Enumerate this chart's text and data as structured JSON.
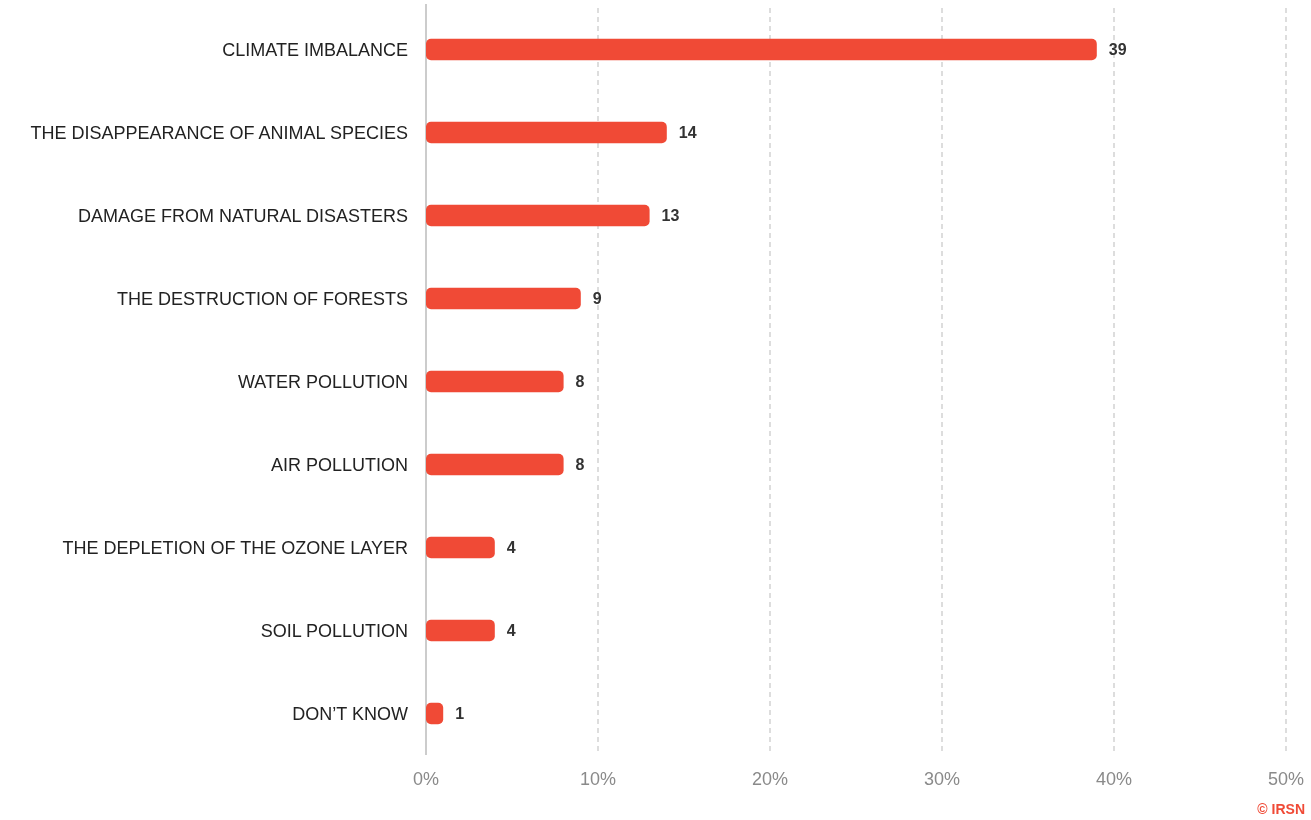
{
  "chart_data": {
    "type": "bar",
    "orientation": "horizontal",
    "categories": [
      "CLIMATE IMBALANCE",
      "THE DISAPPEARANCE OF ANIMAL SPECIES",
      "DAMAGE FROM NATURAL DISASTERS",
      "THE DESTRUCTION OF FORESTS",
      "WATER POLLUTION",
      "AIR POLLUTION",
      "THE DEPLETION OF THE OZONE LAYER",
      "SOIL POLLUTION",
      "DON’T KNOW"
    ],
    "values": [
      39,
      14,
      13,
      9,
      8,
      8,
      4,
      4,
      1
    ],
    "color": "#f04a36",
    "xlim": [
      0,
      50
    ],
    "xticks": [
      {
        "value": 0,
        "label": "0%"
      },
      {
        "value": 10,
        "label": "10%"
      },
      {
        "value": 20,
        "label": "20%"
      },
      {
        "value": 30,
        "label": "30%"
      },
      {
        "value": 40,
        "label": "40%"
      },
      {
        "value": 50,
        "label": "50%"
      }
    ],
    "grid": "x",
    "data_labels": true,
    "annotations": [
      "© IRSN"
    ]
  }
}
